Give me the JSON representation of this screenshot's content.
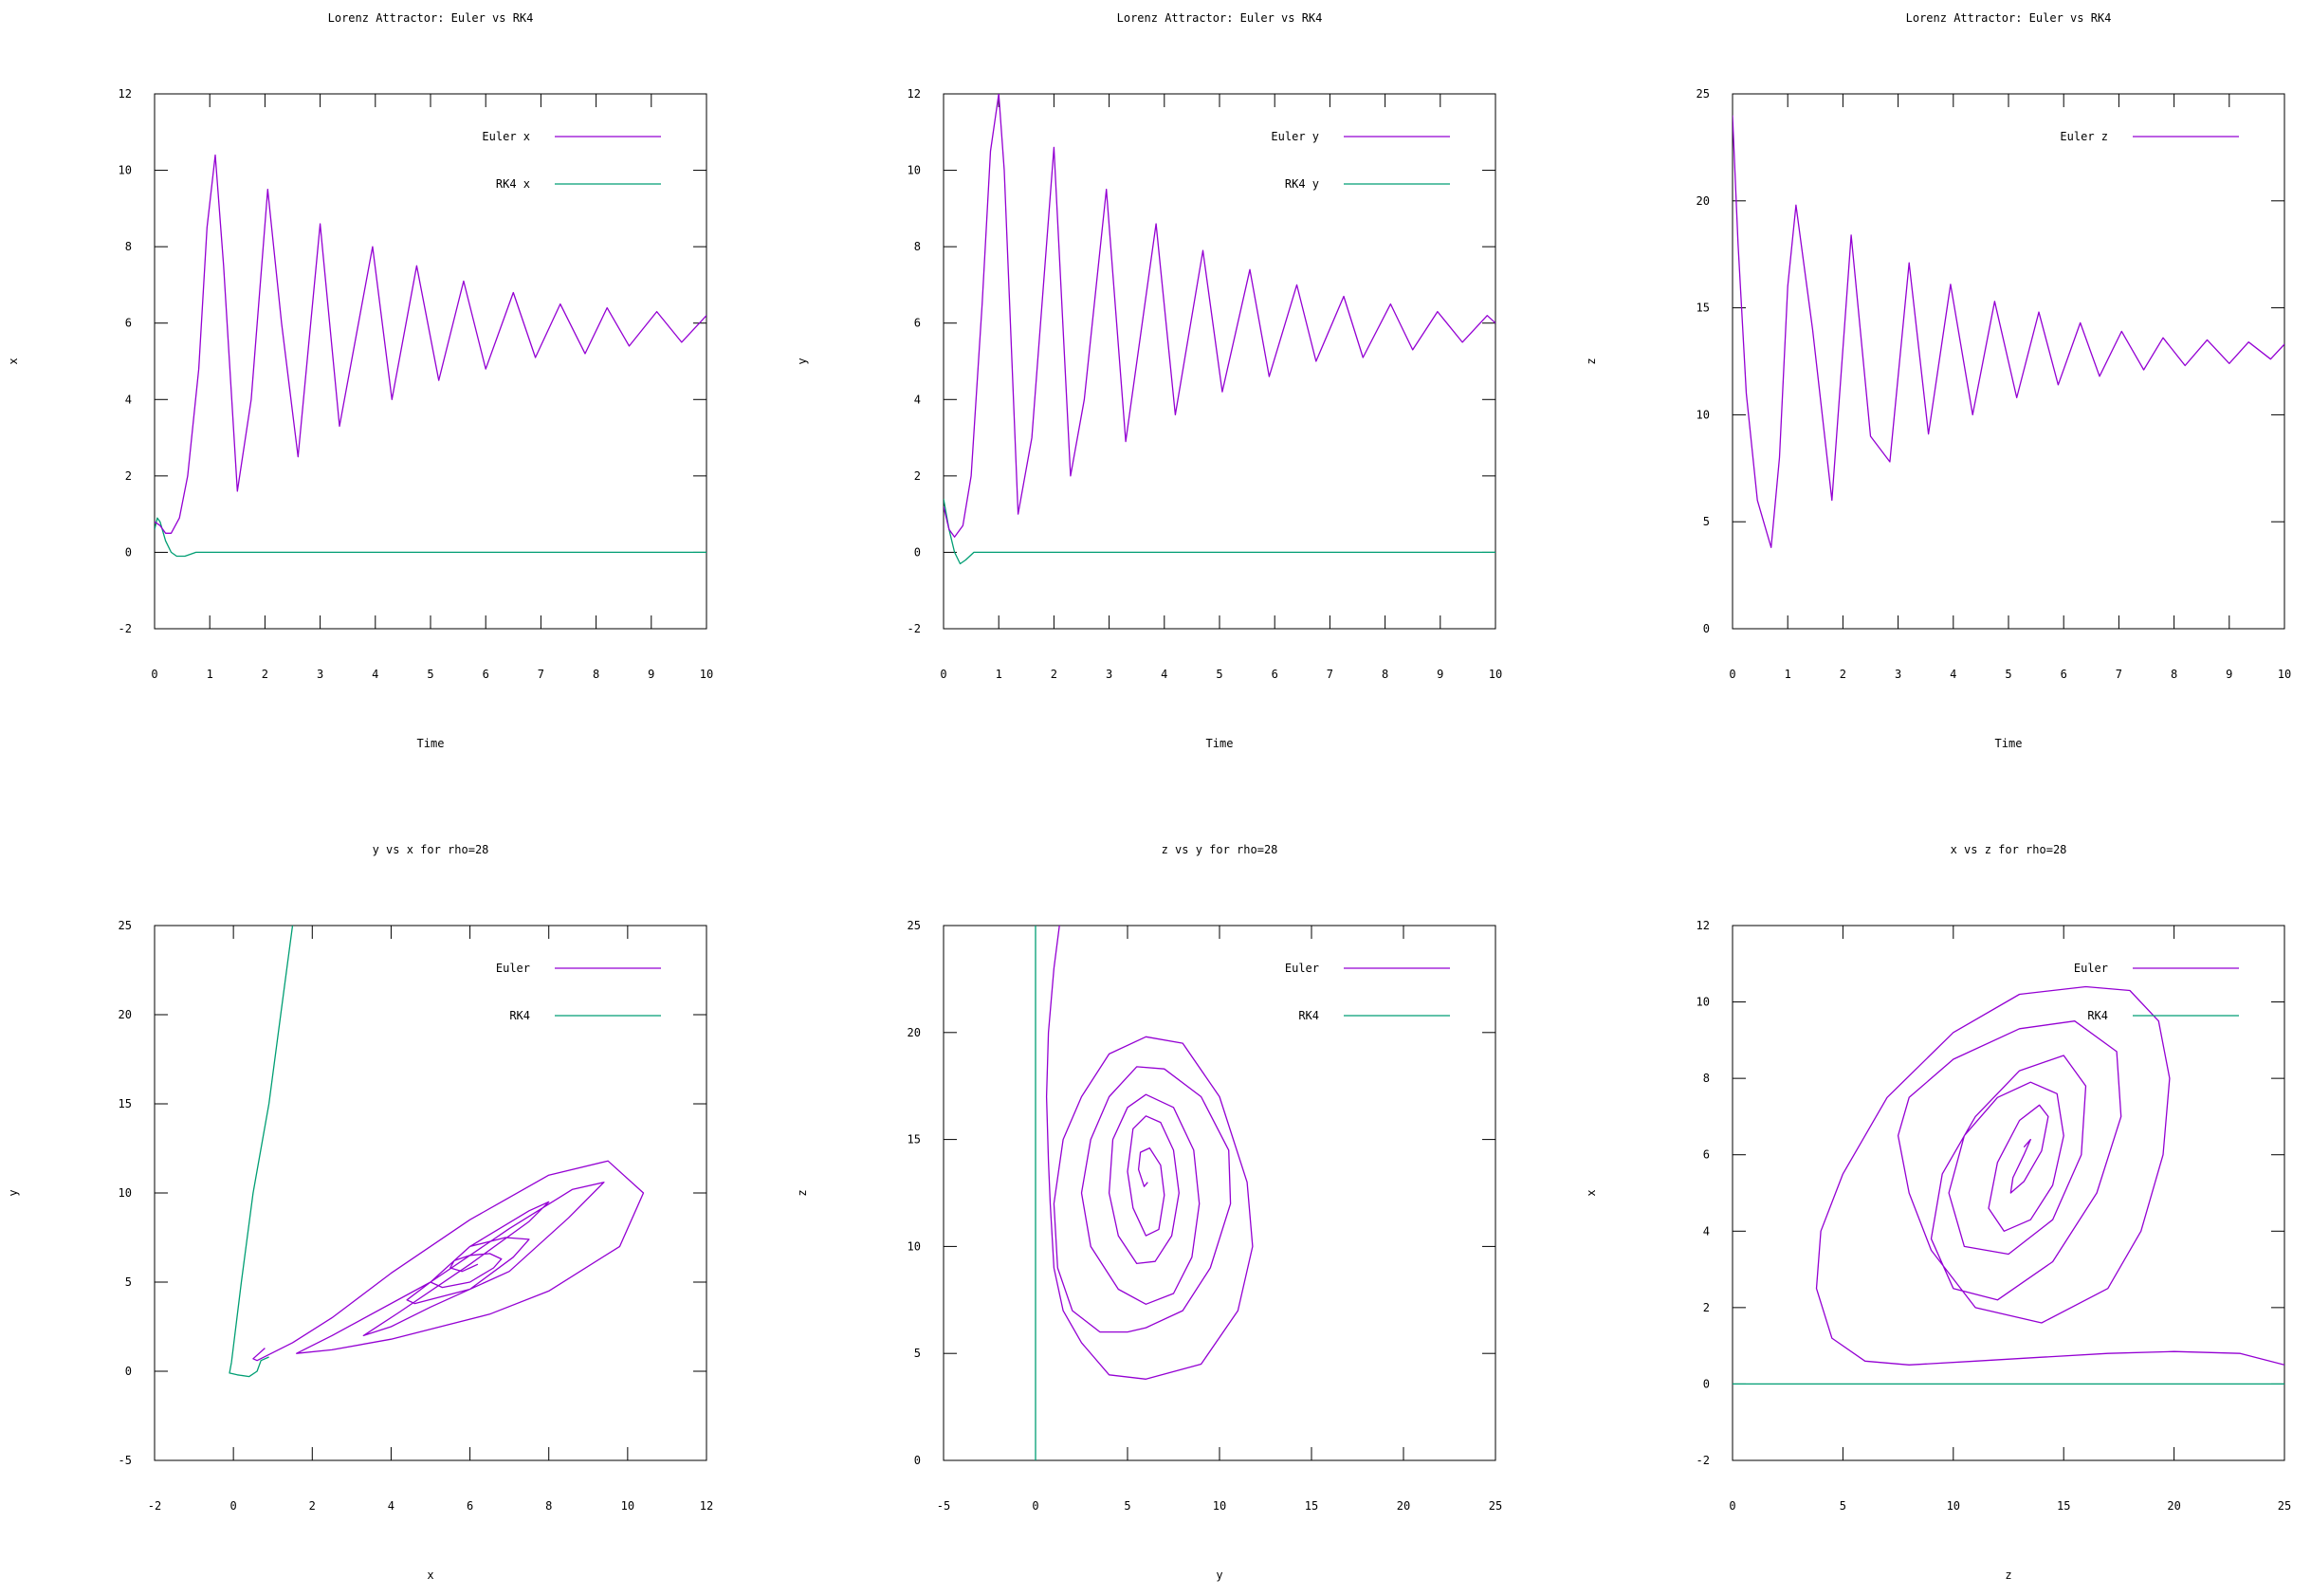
{
  "colors": {
    "euler": "#9400d3",
    "rk4": "#009e73",
    "axis": "#000000",
    "background": "#ffffff"
  },
  "chart_data": [
    {
      "type": "line",
      "title": "Lorenz Attractor: Euler vs RK4",
      "xlabel": "Time",
      "ylabel": "x",
      "xlim": [
        0,
        10
      ],
      "ylim": [
        -2,
        12
      ],
      "xticks": [
        0,
        1,
        2,
        3,
        4,
        5,
        6,
        7,
        8,
        9,
        10
      ],
      "yticks": [
        -2,
        0,
        2,
        4,
        6,
        8,
        10,
        12
      ],
      "grid": false,
      "legend": "top-right",
      "series": [
        {
          "name": "Euler x",
          "color": "euler",
          "x": [
            0,
            0.1,
            0.2,
            0.3,
            0.45,
            0.6,
            0.8,
            0.95,
            1.1,
            1.25,
            1.5,
            1.75,
            2.05,
            2.3,
            2.6,
            3.0,
            3.35,
            3.95,
            4.3,
            4.75,
            5.15,
            5.6,
            6.0,
            6.5,
            6.9,
            7.35,
            7.8,
            8.2,
            8.6,
            9.1,
            9.55,
            10.0
          ],
          "y": [
            0.8,
            0.7,
            0.5,
            0.5,
            0.9,
            2.0,
            4.8,
            8.5,
            10.4,
            7.5,
            1.6,
            4.0,
            9.5,
            6.0,
            2.5,
            8.6,
            3.3,
            8.0,
            4.0,
            7.5,
            4.5,
            7.1,
            4.8,
            6.8,
            5.1,
            6.5,
            5.2,
            6.4,
            5.4,
            6.3,
            5.5,
            6.2
          ]
        },
        {
          "name": "RK4 x",
          "color": "rk4",
          "x": [
            0,
            0.05,
            0.1,
            0.2,
            0.3,
            0.4,
            0.55,
            0.75,
            1,
            2,
            4,
            6,
            8,
            10
          ],
          "y": [
            0.6,
            0.9,
            0.8,
            0.3,
            0.0,
            -0.1,
            -0.1,
            0.0,
            0,
            0,
            0,
            0,
            0,
            0
          ]
        }
      ]
    },
    {
      "type": "line",
      "title": "Lorenz Attractor: Euler vs RK4",
      "xlabel": "Time",
      "ylabel": "y",
      "xlim": [
        0,
        10
      ],
      "ylim": [
        -2,
        12
      ],
      "xticks": [
        0,
        1,
        2,
        3,
        4,
        5,
        6,
        7,
        8,
        9,
        10
      ],
      "yticks": [
        -2,
        0,
        2,
        4,
        6,
        8,
        10,
        12
      ],
      "grid": false,
      "legend": "top-right",
      "series": [
        {
          "name": "Euler y",
          "color": "euler",
          "x": [
            0,
            0.1,
            0.2,
            0.35,
            0.5,
            0.7,
            0.85,
            1.0,
            1.1,
            1.35,
            1.6,
            2.0,
            2.3,
            2.55,
            2.95,
            3.3,
            3.85,
            4.2,
            4.7,
            5.05,
            5.55,
            5.9,
            6.4,
            6.75,
            7.25,
            7.6,
            8.1,
            8.5,
            8.95,
            9.4,
            9.85,
            10.0
          ],
          "y": [
            1.2,
            0.6,
            0.4,
            0.7,
            2.0,
            6.5,
            10.5,
            12.0,
            10.0,
            1.0,
            3.0,
            10.6,
            2.0,
            4.0,
            9.5,
            2.9,
            8.6,
            3.6,
            7.9,
            4.2,
            7.4,
            4.6,
            7.0,
            5.0,
            6.7,
            5.1,
            6.5,
            5.3,
            6.3,
            5.5,
            6.2,
            6.0
          ]
        },
        {
          "name": "RK4 y",
          "color": "rk4",
          "x": [
            0,
            0.05,
            0.1,
            0.2,
            0.3,
            0.4,
            0.55,
            0.75,
            1,
            2,
            4,
            6,
            8,
            10
          ],
          "y": [
            1.4,
            1.0,
            0.6,
            0.0,
            -0.3,
            -0.2,
            0.0,
            0.0,
            0,
            0,
            0,
            0,
            0,
            0
          ]
        }
      ]
    },
    {
      "type": "line",
      "title": "Lorenz Attractor: Euler vs RK4",
      "xlabel": "Time",
      "ylabel": "z",
      "xlim": [
        0,
        10
      ],
      "ylim": [
        0,
        25
      ],
      "xticks": [
        0,
        1,
        2,
        3,
        4,
        5,
        6,
        7,
        8,
        9,
        10
      ],
      "yticks": [
        0,
        5,
        10,
        15,
        20,
        25
      ],
      "grid": false,
      "legend": "top-right",
      "series": [
        {
          "name": "Euler z",
          "color": "euler",
          "x": [
            0,
            0.1,
            0.25,
            0.45,
            0.7,
            0.85,
            1.0,
            1.15,
            1.45,
            1.8,
            2.15,
            2.5,
            2.85,
            3.2,
            3.55,
            3.95,
            4.35,
            4.75,
            5.15,
            5.55,
            5.9,
            6.3,
            6.65,
            7.05,
            7.45,
            7.8,
            8.2,
            8.6,
            9.0,
            9.35,
            9.75,
            10.0
          ],
          "y": [
            24,
            18,
            11,
            6,
            3.8,
            8,
            16,
            19.8,
            14,
            6,
            18.4,
            9,
            7.8,
            17.1,
            9.1,
            16.1,
            10.0,
            15.3,
            10.8,
            14.8,
            11.4,
            14.3,
            11.8,
            13.9,
            12.1,
            13.6,
            12.3,
            13.5,
            12.4,
            13.4,
            12.6,
            13.3
          ]
        }
      ]
    },
    {
      "type": "line",
      "title": "y vs x for rho=28",
      "xlabel": "x",
      "ylabel": "y",
      "xlim": [
        -2,
        12
      ],
      "ylim": [
        -5,
        25
      ],
      "xticks": [
        -2,
        0,
        2,
        4,
        6,
        8,
        10,
        12
      ],
      "yticks": [
        -5,
        0,
        5,
        10,
        15,
        20,
        25
      ],
      "grid": false,
      "legend": "top-right",
      "series": [
        {
          "name": "Euler",
          "color": "euler",
          "x": [
            0.8,
            0.5,
            0.6,
            1.5,
            2.5,
            4,
            6,
            8,
            9.5,
            10.4,
            9.8,
            8,
            6.5,
            4,
            2.5,
            1.6,
            2.5,
            5,
            7,
            8.6,
            9.4,
            8.5,
            7,
            5,
            4,
            3.3,
            4.2,
            6,
            7.5,
            8.0,
            7.5,
            6,
            5,
            4.4,
            4.6,
            6,
            7.1,
            7.5,
            6.9,
            6,
            5.5,
            5.0,
            5.3,
            6,
            6.6,
            6.8,
            6.5,
            6,
            5.6,
            5.5,
            5.8,
            6,
            6.2
          ],
          "y": [
            1.3,
            0.7,
            0.6,
            1.6,
            3,
            5.5,
            8.5,
            11,
            11.8,
            10,
            7,
            4.5,
            3.2,
            1.8,
            1.2,
            1.0,
            2.0,
            5,
            8,
            10.2,
            10.6,
            8.6,
            5.6,
            3.6,
            2.5,
            2.0,
            3.3,
            6,
            8.4,
            9.5,
            9.0,
            7.0,
            5.0,
            4.0,
            3.8,
            4.6,
            6.4,
            7.4,
            7.5,
            7.0,
            6.0,
            5.0,
            4.7,
            5.0,
            5.8,
            6.3,
            6.6,
            6.5,
            6.2,
            5.8,
            5.6,
            5.8,
            6.0
          ]
        },
        {
          "name": "RK4",
          "color": "rk4",
          "x": [
            0.9,
            0.7,
            0.6,
            0.4,
            0.1,
            -0.1,
            -0.05,
            0.2,
            0.5,
            0.9,
            1.2,
            1.5
          ],
          "y": [
            0.8,
            0.6,
            0.0,
            -0.3,
            -0.2,
            -0.1,
            0.5,
            5,
            10,
            15,
            20,
            25
          ]
        }
      ]
    },
    {
      "type": "line",
      "title": "z vs y for rho=28",
      "xlabel": "y",
      "ylabel": "z",
      "xlim": [
        -5,
        25
      ],
      "ylim": [
        0,
        25
      ],
      "xticks": [
        -5,
        0,
        5,
        10,
        15,
        20,
        25
      ],
      "yticks": [
        0,
        5,
        10,
        15,
        20,
        25
      ],
      "grid": false,
      "legend": "top-right",
      "series": [
        {
          "name": "Euler",
          "color": "euler",
          "x": [
            1.3,
            1.0,
            0.7,
            0.6,
            0.7,
            0.8,
            1.0,
            1.5,
            2.5,
            4,
            6,
            9,
            11,
            11.8,
            11.5,
            10,
            8,
            6,
            4,
            2.5,
            1.5,
            1.0,
            1.2,
            2,
            3.5,
            5,
            6,
            8,
            9.5,
            10.6,
            10.5,
            9,
            7,
            5.5,
            4,
            3,
            2.5,
            3,
            4.5,
            6,
            7.5,
            8.5,
            8.9,
            8.6,
            7.5,
            6,
            5,
            4.2,
            4.0,
            4.5,
            5.5,
            6.5,
            7.4,
            7.8,
            7.5,
            6.8,
            6,
            5.3,
            5.0,
            5.3,
            6,
            6.7,
            7.0,
            6.8,
            6.2,
            5.7,
            5.6,
            5.9,
            6.1
          ],
          "y": [
            25,
            23,
            20,
            17,
            14,
            12,
            9,
            7,
            5.5,
            4,
            3.8,
            4.5,
            7,
            10,
            13,
            17,
            19.5,
            19.8,
            19,
            17,
            15,
            12,
            9,
            7,
            6,
            6,
            6.2,
            7,
            9,
            12,
            14.5,
            17,
            18.3,
            18.4,
            17,
            15,
            12.5,
            10,
            8,
            7.3,
            7.8,
            9.5,
            12,
            14.5,
            16.5,
            17.1,
            16.5,
            15,
            12.5,
            10.5,
            9.2,
            9.3,
            10.5,
            12.5,
            14.5,
            15.8,
            16.1,
            15.5,
            13.5,
            11.8,
            10.5,
            10.8,
            12.4,
            13.8,
            14.6,
            14.4,
            13.6,
            12.8,
            13.0
          ]
        },
        {
          "name": "RK4",
          "color": "rk4",
          "x": [
            0,
            0,
            0,
            0,
            0,
            0
          ],
          "y": [
            0,
            5,
            10,
            15,
            20,
            25
          ]
        }
      ]
    },
    {
      "type": "line",
      "title": "x vs z for rho=28",
      "xlabel": "z",
      "ylabel": "x",
      "xlim": [
        0,
        25
      ],
      "ylim": [
        -2,
        12
      ],
      "xticks": [
        0,
        5,
        10,
        15,
        20,
        25
      ],
      "yticks": [
        -2,
        0,
        2,
        4,
        6,
        8,
        10,
        12
      ],
      "grid": false,
      "legend": "top-right",
      "series": [
        {
          "name": "Euler",
          "color": "euler",
          "x": [
            25,
            23,
            20,
            17,
            14,
            11,
            8,
            6,
            4.5,
            3.8,
            4,
            5,
            7,
            10,
            13,
            16,
            18,
            19.3,
            19.8,
            19.5,
            18.5,
            17,
            14,
            11,
            9,
            8,
            7.5,
            8,
            10,
            13,
            15.5,
            17.4,
            17.6,
            16.5,
            14.5,
            12,
            10,
            9,
            9.5,
            11,
            13,
            15,
            16,
            15.8,
            14.5,
            12.5,
            10.5,
            9.8,
            10.5,
            12,
            13.5,
            14.7,
            15.0,
            14.5,
            13.5,
            12.3,
            11.6,
            12.0,
            13,
            13.9,
            14.3,
            14.0,
            13.2,
            12.6,
            12.7,
            13.2,
            13.5,
            13.2
          ],
          "y": [
            0.5,
            0.8,
            0.85,
            0.8,
            0.7,
            0.6,
            0.5,
            0.6,
            1.2,
            2.5,
            4,
            5.5,
            7.5,
            9.2,
            10.2,
            10.4,
            10.3,
            9.5,
            8,
            6,
            4,
            2.5,
            1.6,
            2.0,
            3.5,
            5,
            6.5,
            7.5,
            8.5,
            9.3,
            9.5,
            8.7,
            7,
            5,
            3.2,
            2.2,
            2.5,
            3.8,
            5.5,
            7,
            8.2,
            8.6,
            7.8,
            6,
            4.3,
            3.4,
            3.6,
            5,
            6.5,
            7.5,
            7.9,
            7.6,
            6.5,
            5.2,
            4.3,
            4.0,
            4.6,
            5.8,
            6.9,
            7.3,
            7.0,
            6.1,
            5.3,
            5.0,
            5.4,
            6.0,
            6.4,
            6.2
          ]
        },
        {
          "name": "RK4",
          "color": "rk4",
          "x": [
            0,
            5,
            10,
            15,
            20,
            25
          ],
          "y": [
            0,
            0,
            0,
            0,
            0,
            0
          ]
        }
      ]
    }
  ]
}
